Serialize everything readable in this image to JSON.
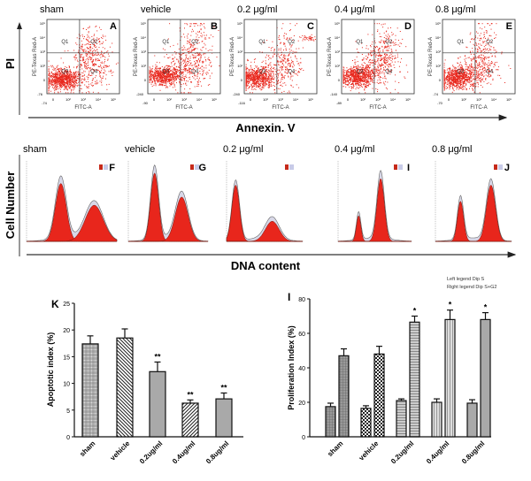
{
  "flow_cytometry": {
    "y_axis_label": "PI",
    "x_axis_label": "Annexin. V",
    "panel_y_label": "PE-Texas Red-A",
    "panel_x_label": "FITC-A",
    "quadrants": [
      "Q1",
      "Q2",
      "Q3",
      "Q4"
    ],
    "y_ticks": [
      "10⁵",
      "10⁴",
      "10³",
      "10²",
      "0"
    ],
    "x_ticks": [
      "0",
      "10²",
      "10³",
      "10⁴",
      "10⁵"
    ],
    "dot_color": "#e8261c",
    "panels": [
      {
        "letter": "A",
        "title": "sham",
        "y_min": "-76",
        "x_min": "-74"
      },
      {
        "letter": "B",
        "title": "vehicle",
        "y_min": "-240",
        "x_min": "-90"
      },
      {
        "letter": "C",
        "title": "0.2 μg/ml",
        "y_min": "-240",
        "x_min": "-116"
      },
      {
        "letter": "D",
        "title": "0.4 μg/ml",
        "y_min": "-140",
        "x_min": "-89"
      },
      {
        "letter": "E",
        "title": "0.8 μg/ml",
        "y_min": "-74",
        "x_min": "-70"
      }
    ]
  },
  "cell_cycle": {
    "y_axis_label": "Cell Number",
    "x_axis_label": "DNA content",
    "peak_color": "#e8261c",
    "panels": [
      {
        "letter": "F",
        "title": "sham"
      },
      {
        "letter": "G",
        "title": "vehicle"
      },
      {
        "letter": "",
        "title": "0.2 μg/ml"
      },
      {
        "letter": "I",
        "title": "0.4 μg/ml"
      },
      {
        "letter": "J",
        "title": "0.8 μg/ml"
      }
    ]
  },
  "chart_data": [
    {
      "type": "bar",
      "panel_label": "K",
      "ylabel": "Apoptotic index (%)",
      "xlabel": "",
      "ylim": [
        0,
        25
      ],
      "y_ticks": [
        "0",
        "5",
        "10",
        "15",
        "20",
        "25"
      ],
      "categories": [
        "sham",
        "vehicle",
        "0.2ug/ml",
        "0.4ug/ml",
        "0.8ug/ml"
      ],
      "values": [
        17.4,
        18.5,
        12.2,
        6.3,
        7.1
      ],
      "errors": [
        1.5,
        1.7,
        1.8,
        0.6,
        1.1
      ],
      "significance": [
        "",
        "",
        "**",
        "**",
        "**"
      ],
      "fills": [
        "crosshatch",
        "diagonal-left",
        "solid-gray",
        "diagonal-right",
        "solid-gray"
      ],
      "grid": false
    },
    {
      "type": "bar",
      "panel_label": "I",
      "ylabel": "Proliferation Index (%)",
      "xlabel": "",
      "ylim": [
        0,
        80
      ],
      "y_ticks": [
        "0",
        "20",
        "40",
        "60",
        "80"
      ],
      "categories": [
        "sham",
        "vehicle",
        "0.2ug/ml",
        "0.4ug/ml",
        "0.8ug/ml"
      ],
      "legend_note": [
        "Left legend Dip S",
        "Right legend Dip S+G2"
      ],
      "series": [
        {
          "values": [
            17.5,
            16.5,
            21,
            20,
            19.5
          ],
          "errors": [
            2,
            1.5,
            1,
            2,
            2
          ]
        },
        {
          "values": [
            47,
            48,
            66.5,
            68,
            68
          ],
          "errors": [
            4,
            4.5,
            3.5,
            5.5,
            4
          ]
        }
      ],
      "significance": [
        "",
        "",
        "*",
        "*",
        "*"
      ],
      "grid": false
    }
  ]
}
